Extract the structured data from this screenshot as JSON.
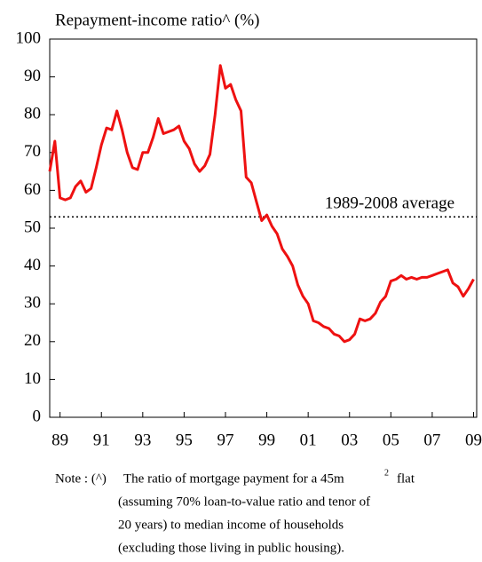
{
  "chart_data": {
    "type": "line",
    "title": "Repayment-income ratio^ (%)",
    "x": [
      1989,
      1989.25,
      1989.5,
      1989.75,
      1990,
      1990.25,
      1990.5,
      1990.75,
      1991,
      1991.25,
      1991.5,
      1991.75,
      1992,
      1992.25,
      1992.5,
      1992.75,
      1993,
      1993.25,
      1993.5,
      1993.75,
      1994,
      1994.25,
      1994.5,
      1994.75,
      1995,
      1995.25,
      1995.5,
      1995.75,
      1996,
      1996.25,
      1996.5,
      1996.75,
      1997,
      1997.25,
      1997.5,
      1997.75,
      1998,
      1998.25,
      1998.5,
      1998.75,
      1999,
      1999.25,
      1999.5,
      1999.75,
      2000,
      2000.25,
      2000.5,
      2000.75,
      2001,
      2001.25,
      2001.5,
      2001.75,
      2002,
      2002.25,
      2002.5,
      2002.75,
      2003,
      2003.25,
      2003.5,
      2003.75,
      2004,
      2004.25,
      2004.5,
      2004.75,
      2005,
      2005.25,
      2005.5,
      2005.75,
      2006,
      2006.25,
      2006.5,
      2006.75,
      2007,
      2007.25,
      2007.5,
      2007.75,
      2008,
      2008.25,
      2008.5,
      2008.75,
      2009,
      2009.25,
      2009.5
    ],
    "series": [
      {
        "name": "Repayment-income ratio",
        "color": "#ee1111",
        "values": [
          65,
          73,
          58,
          57.5,
          58,
          61,
          62.5,
          59.5,
          60.5,
          66,
          72,
          76.5,
          76,
          81,
          76,
          70,
          66,
          65.5,
          70,
          70,
          74,
          79,
          75,
          75.5,
          76,
          77,
          73,
          71,
          67,
          65,
          66.5,
          69.5,
          80,
          93,
          87,
          88,
          84,
          81,
          63.5,
          62,
          57,
          52,
          53.5,
          50.5,
          48.5,
          44.5,
          42.5,
          40,
          35,
          32,
          30,
          25.5,
          25,
          24,
          23.5,
          22,
          21.5,
          20,
          20.5,
          22,
          26,
          25.5,
          26,
          27.5,
          30.5,
          32,
          36,
          36.5,
          37.5,
          36.5,
          37,
          36.5,
          37,
          37,
          37.5,
          38,
          38.5,
          39,
          35.5,
          34.5,
          32,
          34,
          36.5
        ]
      }
    ],
    "xlim": [
      1989,
      2009.65
    ],
    "xticks": [
      {
        "value": 1989.5,
        "label": "89"
      },
      {
        "value": 1991.5,
        "label": "91"
      },
      {
        "value": 1993.5,
        "label": "93"
      },
      {
        "value": 1995.5,
        "label": "95"
      },
      {
        "value": 1997.5,
        "label": "97"
      },
      {
        "value": 1999.5,
        "label": "99"
      },
      {
        "value": 2001.5,
        "label": "01"
      },
      {
        "value": 2003.5,
        "label": "03"
      },
      {
        "value": 2005.5,
        "label": "05"
      },
      {
        "value": 2007.5,
        "label": "07"
      },
      {
        "value": 2009.5,
        "label": "09"
      }
    ],
    "ylim": [
      0,
      100
    ],
    "yticks": [
      0,
      10,
      20,
      30,
      40,
      50,
      60,
      70,
      80,
      90,
      100
    ],
    "average": {
      "value": 53,
      "label": "1989-2008 average"
    },
    "note": {
      "head": "Note : (^)",
      "line1": "The  ratio of mortgage payment for a 45m",
      "sup": "2",
      "line1_end": "flat",
      "lines": [
        "(assuming  70% loan-to-value ratio and tenor of",
        "20  years)  to  median  income  of  households",
        "(excluding those living in public housing)."
      ]
    }
  }
}
